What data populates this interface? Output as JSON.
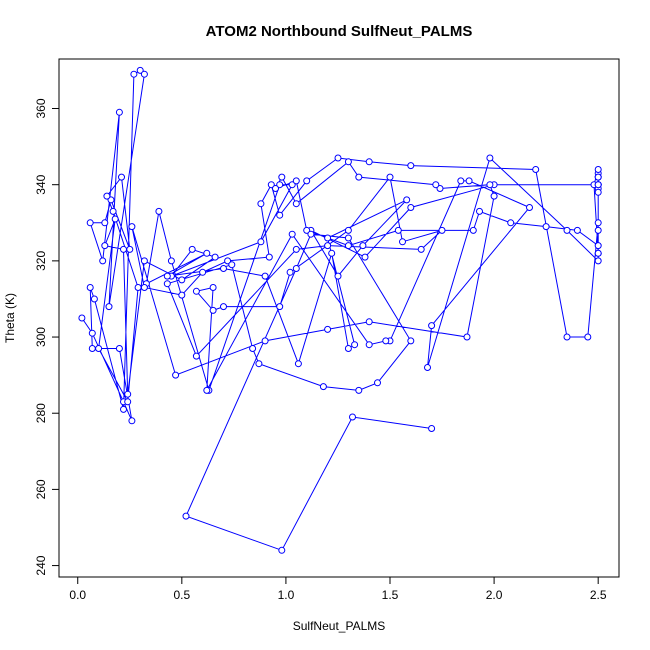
{
  "chart_data": {
    "type": "line",
    "title": "ATOM2 Northbound SulfNeut_PALMS",
    "xlabel": "SulfNeut_PALMS",
    "ylabel": "Theta (K)",
    "xlim": [
      -0.09,
      2.6
    ],
    "ylim": [
      237,
      373
    ],
    "x_ticks": [
      0.0,
      0.5,
      1.0,
      1.5,
      2.0,
      2.5
    ],
    "x_tick_labels": [
      "0.0",
      "0.5",
      "1.0",
      "1.5",
      "2.0",
      "2.5"
    ],
    "y_ticks": [
      240,
      260,
      280,
      300,
      320,
      340,
      360
    ],
    "y_tick_labels": [
      "240",
      "260",
      "280",
      "300",
      "320",
      "340",
      "360"
    ],
    "grid": false,
    "series_color": "#0000ff",
    "marker": "open-circle",
    "series": [
      {
        "x": [
          0.02,
          0.07,
          0.22,
          0.26,
          0.2,
          0.07,
          0.06,
          0.08,
          0.22,
          0.27,
          0.3,
          0.32,
          0.15,
          0.2,
          0.12,
          0.06,
          0.13,
          0.16,
          0.25,
          0.21,
          0.14,
          0.17,
          0.29,
          0.24,
          0.1,
          0.18,
          0.13,
          0.22,
          0.24,
          0.32,
          0.5,
          0.66,
          0.55,
          0.45,
          0.88,
          1.03,
          0.97,
          0.63,
          0.45,
          0.39,
          0.33,
          0.62,
          0.43,
          0.7,
          0.9,
          1.06,
          1.22,
          1.3,
          1.33,
          1.2,
          1.58,
          1.37,
          1.25,
          1.12,
          1.38,
          1.6,
          2.0,
          2.5,
          2.5,
          2.5,
          2.5,
          2.5,
          2.48,
          2.5,
          2.5,
          2.5,
          2.5,
          2.5,
          2.5,
          2.45,
          2.35,
          2.2,
          1.6,
          1.4,
          1.25,
          1.1,
          0.97,
          0.93,
          0.88,
          0.92,
          0.72,
          0.6,
          0.5,
          0.32,
          0.26,
          0.47,
          0.9,
          1.2,
          1.4,
          1.87,
          2.0,
          1.98,
          1.74,
          1.72,
          1.35,
          1.3,
          1.05,
          0.98,
          0.95,
          1.05,
          1.1,
          1.3,
          1.54,
          1.9,
          1.93,
          2.08,
          2.25,
          2.4,
          2.5,
          2.5,
          2.5,
          2.5,
          2.5,
          2.35,
          1.98,
          1.68,
          1.7,
          2.17,
          1.88,
          1.84,
          1.5,
          1.48,
          1.4,
          1.03,
          0.62,
          0.65,
          0.57,
          0.65,
          0.7,
          0.97,
          1.02,
          1.3,
          1.5,
          1.56,
          1.75,
          1.65,
          1.2,
          1.05,
          0.57,
          0.43,
          0.74,
          0.84,
          0.87,
          1.18,
          1.35,
          1.44,
          1.6,
          1.3,
          1.12,
          1.05,
          0.52,
          0.98,
          1.32,
          1.7
        ],
        "y": [
          305,
          301,
          283,
          278,
          297,
          297,
          313,
          310,
          281,
          369,
          370,
          369,
          308,
          359,
          320,
          330,
          330,
          336,
          323,
          342,
          337,
          333,
          313,
          283,
          297,
          331,
          324,
          323,
          285,
          320,
          315,
          321,
          323,
          316,
          325,
          340,
          340,
          286,
          320,
          333,
          314,
          322,
          316,
          318,
          316,
          293,
          322,
          297,
          298,
          326,
          336,
          324,
          316,
          328,
          321,
          334,
          340,
          340,
          340,
          343,
          339,
          344,
          340,
          322,
          338,
          340,
          340,
          342,
          330,
          300,
          300,
          344,
          345,
          346,
          347,
          341,
          332,
          340,
          335,
          321,
          320,
          317,
          311,
          313,
          329,
          290,
          299,
          302,
          304,
          300,
          337,
          340,
          339,
          340,
          342,
          346,
          335,
          342,
          339,
          341,
          328,
          324,
          328,
          328,
          333,
          330,
          329,
          328,
          324,
          342,
          328,
          322,
          320,
          328,
          347,
          292,
          303,
          334,
          341,
          341,
          299,
          299,
          298,
          327,
          286,
          313,
          312,
          307,
          308,
          308,
          317,
          328,
          342,
          325,
          328,
          323,
          324,
          323,
          295,
          314,
          319,
          297,
          293,
          287,
          286,
          288,
          299,
          326,
          327,
          318,
          253,
          244,
          279,
          276
        ]
      }
    ]
  }
}
